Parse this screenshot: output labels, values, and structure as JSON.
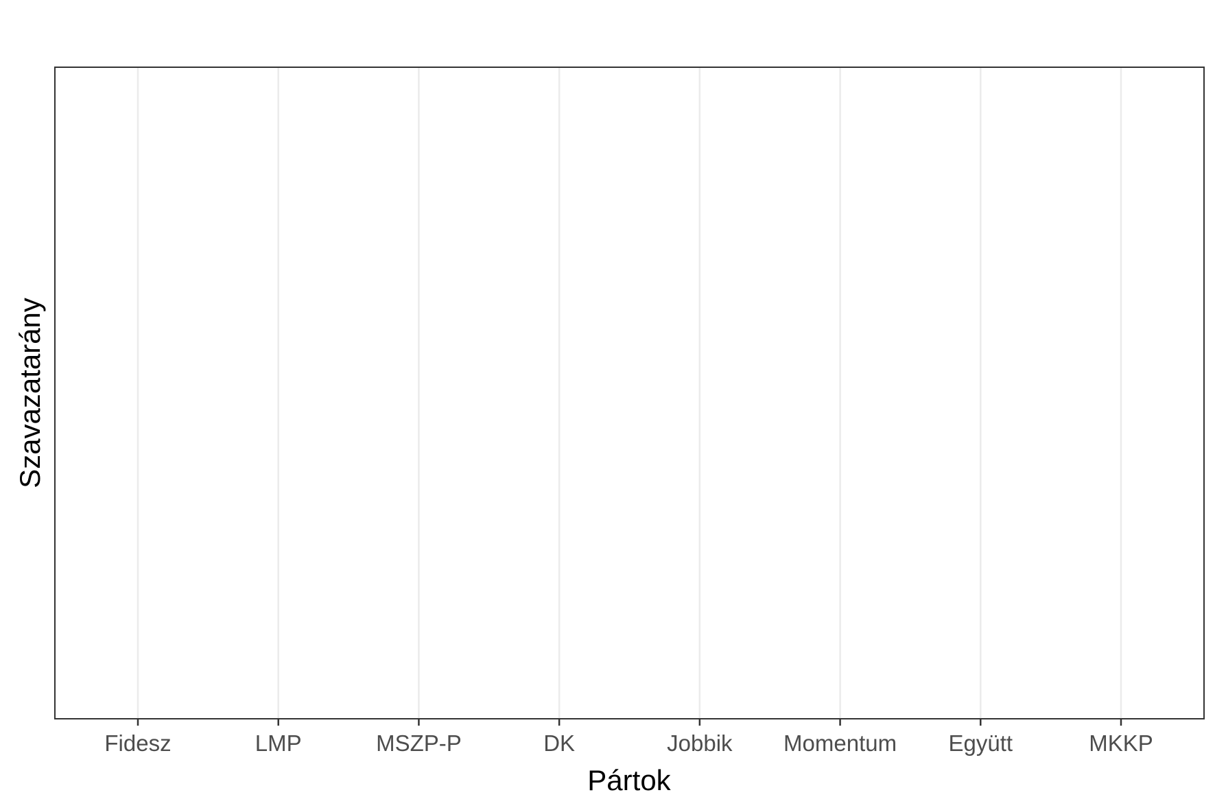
{
  "chart_data": {
    "type": "bar",
    "title": "",
    "xlabel": "Pártok",
    "ylabel": "Szavazatarány",
    "categories": [
      "Fidesz",
      "LMP",
      "MSZP-P",
      "DK",
      "Jobbik",
      "Momentum",
      "Együtt",
      "MKKP"
    ],
    "series": [],
    "grid": {
      "major_x": true,
      "major_y": false
    },
    "legend": "none",
    "colors": {
      "background": "#ffffff",
      "panel_border": "#333333",
      "grid": "#ebebeb",
      "tick": "#333333",
      "tick_label": "#4d4d4d",
      "axis_title": "#000000"
    }
  }
}
